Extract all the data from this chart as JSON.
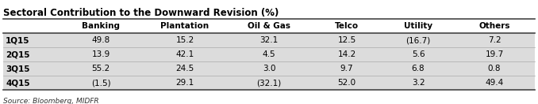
{
  "title": "Sectoral Contribution to the Downward Revision (%)",
  "columns": [
    "",
    "Banking",
    "Plantation",
    "Oil & Gas",
    "Telco",
    "Utility",
    "Others"
  ],
  "rows": [
    [
      "1Q15",
      "49.8",
      "15.2",
      "32.1",
      "12.5",
      "(16.7)",
      "7.2"
    ],
    [
      "2Q15",
      "13.9",
      "42.1",
      "4.5",
      "14.2",
      "5.6",
      "19.7"
    ],
    [
      "3Q15",
      "55.2",
      "24.5",
      "3.0",
      "9.7",
      "6.8",
      "0.8"
    ],
    [
      "4Q15",
      "(1.5)",
      "29.1",
      "(32.1)",
      "52.0",
      "3.2",
      "49.4"
    ]
  ],
  "source": "Source: Bloomberg, MIDFR",
  "title_color": "#000000",
  "header_bg": "#FFFFFF",
  "header_text_color": "#000000",
  "data_bg": "#DCDCDC",
  "data_text_color": "#000000",
  "row_label_bold": true,
  "border_color": "#555555",
  "source_color": "#333333",
  "fig_width": 6.78,
  "fig_height": 1.32,
  "dpi": 100
}
